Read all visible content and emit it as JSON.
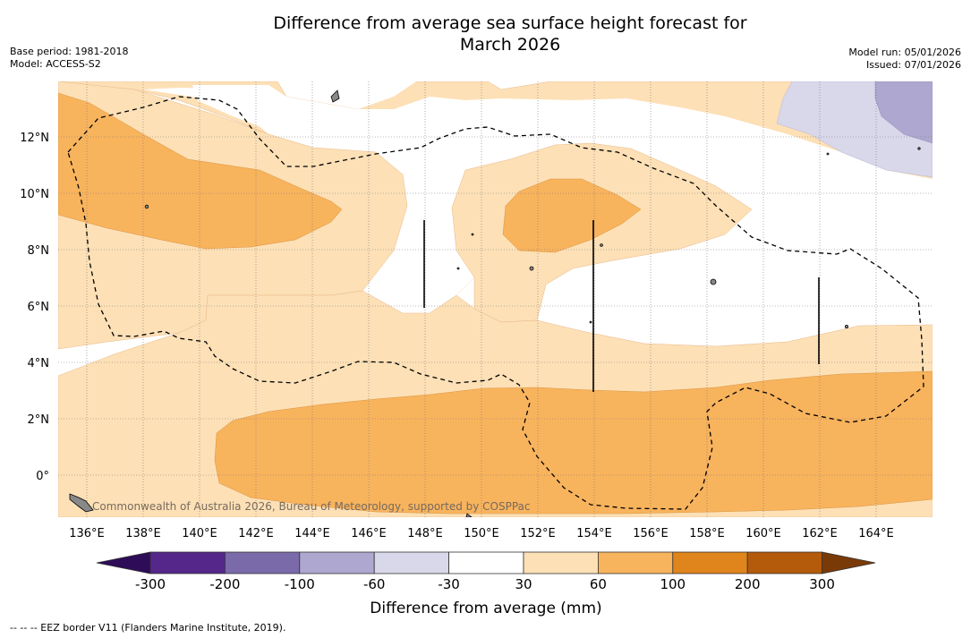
{
  "title_line1": "Difference from average sea surface height forecast for",
  "title_line2": "March 2026",
  "base_period": "Base period: 1981-2018",
  "model": "Model: ACCESS-S2",
  "model_run": "Model run: 05/01/2026",
  "issued": "Issued: 07/01/2026",
  "lon_ticks": [
    "136°E",
    "138°E",
    "140°E",
    "142°E",
    "144°E",
    "146°E",
    "148°E",
    "150°E",
    "152°E",
    "154°E",
    "156°E",
    "158°E",
    "160°E",
    "162°E",
    "164°E"
  ],
  "lat_ticks": [
    "12°N",
    "10°N",
    "8°N",
    "6°N",
    "4°N",
    "2°N",
    "0°"
  ],
  "watermark": "Commonwealth of Australia 2026, Bureau of Meteorology, supported by COSPPac",
  "colorbar": {
    "label": "Difference from average (mm)",
    "ticks": [
      "-300",
      "-200",
      "-100",
      "-60",
      "-30",
      "30",
      "60",
      "100",
      "200",
      "300"
    ],
    "colors": [
      "#2e0c57",
      "#55278a",
      "#7a6aaa",
      "#aea7cf",
      "#d8d8ea",
      "#ffffff",
      "#fde0b6",
      "#f8b35d",
      "#e0841c",
      "#b35a0b",
      "#7a3a08"
    ]
  },
  "footer": "--  --  -- EEZ border V11 (Flanders Marine Institute, 2019)."
}
